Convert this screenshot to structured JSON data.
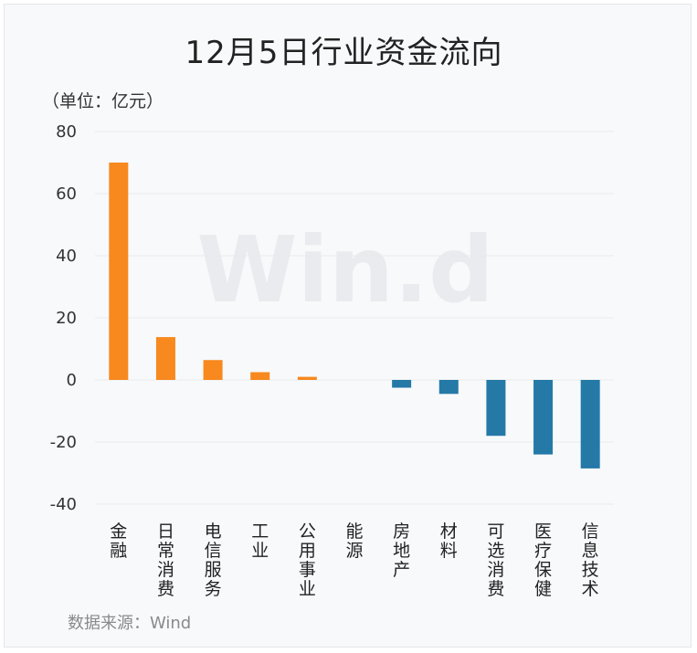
{
  "title": "12月5日行业资金流向",
  "unit_label": "（单位：亿元）",
  "source": "数据来源：Wind",
  "watermark": "Win.d",
  "colors": {
    "positive": "#f7891e",
    "negative": "#2479a7",
    "grid": "#e8eaed"
  },
  "chart_data": {
    "type": "bar",
    "title": "12月5日行业资金流向",
    "ylabel": "（单位：亿元）",
    "ylim": [
      -40,
      80
    ],
    "yticks": [
      80,
      60,
      40,
      20,
      0,
      -20,
      -40
    ],
    "grid": true,
    "categories": [
      "金融",
      "日常消费",
      "电信服务",
      "工业",
      "公用事业",
      "能源",
      "房地产",
      "材料",
      "可选消费",
      "医疗保健",
      "信息技术"
    ],
    "values": [
      70,
      13.8,
      6.4,
      2.5,
      1.0,
      0,
      -2.5,
      -4.5,
      -18,
      -24,
      -28.5
    ]
  }
}
